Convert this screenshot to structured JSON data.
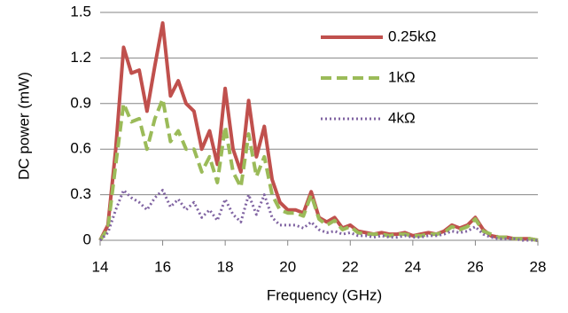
{
  "chart_data": {
    "type": "line",
    "xlabel": "Frequency (GHz)",
    "ylabel": "DC power (mW)",
    "x": [
      14,
      14.25,
      14.5,
      14.75,
      15,
      15.25,
      15.5,
      15.75,
      16,
      16.25,
      16.5,
      16.75,
      17,
      17.25,
      17.5,
      17.75,
      18,
      18.25,
      18.5,
      18.75,
      19,
      19.25,
      19.5,
      19.75,
      20,
      20.25,
      20.5,
      20.75,
      21,
      21.25,
      21.5,
      21.75,
      22,
      22.25,
      22.5,
      22.75,
      23,
      23.25,
      23.5,
      23.75,
      24,
      24.25,
      24.5,
      24.75,
      25,
      25.25,
      25.5,
      25.75,
      26,
      26.25,
      26.5,
      26.75,
      27,
      27.25,
      27.5,
      27.75,
      28
    ],
    "series": [
      {
        "name": "0.25kΩ",
        "color": "#c0504d",
        "line_style": "solid",
        "values": [
          0,
          0.1,
          0.6,
          1.27,
          1.1,
          1.12,
          0.85,
          1.15,
          1.43,
          0.95,
          1.05,
          0.9,
          0.85,
          0.6,
          0.72,
          0.5,
          1.0,
          0.6,
          0.45,
          0.92,
          0.55,
          0.75,
          0.4,
          0.25,
          0.2,
          0.2,
          0.18,
          0.32,
          0.15,
          0.12,
          0.15,
          0.08,
          0.1,
          0.06,
          0.05,
          0.04,
          0.05,
          0.04,
          0.04,
          0.05,
          0.03,
          0.04,
          0.05,
          0.04,
          0.06,
          0.1,
          0.08,
          0.1,
          0.15,
          0.07,
          0.03,
          0.02,
          0.02,
          0.01,
          0.01,
          0.01,
          0
        ]
      },
      {
        "name": "1kΩ",
        "color": "#9bbb59",
        "line_style": "dashed",
        "values": [
          0,
          0.08,
          0.5,
          0.9,
          0.78,
          0.8,
          0.6,
          0.8,
          0.93,
          0.65,
          0.72,
          0.6,
          0.6,
          0.45,
          0.55,
          0.38,
          0.75,
          0.45,
          0.35,
          0.7,
          0.42,
          0.55,
          0.3,
          0.2,
          0.18,
          0.18,
          0.16,
          0.3,
          0.14,
          0.1,
          0.13,
          0.07,
          0.09,
          0.05,
          0.04,
          0.04,
          0.04,
          0.03,
          0.04,
          0.04,
          0.03,
          0.03,
          0.04,
          0.04,
          0.05,
          0.09,
          0.07,
          0.09,
          0.14,
          0.06,
          0.04,
          0.02,
          0.02,
          0.01,
          0.01,
          0.01,
          0
        ]
      },
      {
        "name": "4kΩ",
        "color": "#8064a2",
        "line_style": "dotted",
        "values": [
          0,
          0.05,
          0.2,
          0.33,
          0.28,
          0.25,
          0.2,
          0.28,
          0.33,
          0.22,
          0.27,
          0.2,
          0.25,
          0.15,
          0.2,
          0.13,
          0.27,
          0.17,
          0.12,
          0.3,
          0.17,
          0.3,
          0.15,
          0.1,
          0.1,
          0.1,
          0.08,
          0.12,
          0.07,
          0.05,
          0.06,
          0.04,
          0.05,
          0.03,
          0.03,
          0.02,
          0.03,
          0.02,
          0.02,
          0.03,
          0.02,
          0.02,
          0.03,
          0.03,
          0.04,
          0.06,
          0.05,
          0.06,
          0.09,
          0.04,
          0.02,
          0.01,
          0.01,
          0.01,
          0,
          0,
          0
        ]
      }
    ],
    "xlim": [
      14,
      28
    ],
    "xticks": [
      14,
      16,
      18,
      20,
      22,
      24,
      26,
      28
    ],
    "ylim": [
      0,
      1.5
    ],
    "yticks": [
      0,
      0.3,
      0.6,
      0.9,
      1.2,
      1.5
    ],
    "grid": true,
    "legend": "top-right"
  }
}
